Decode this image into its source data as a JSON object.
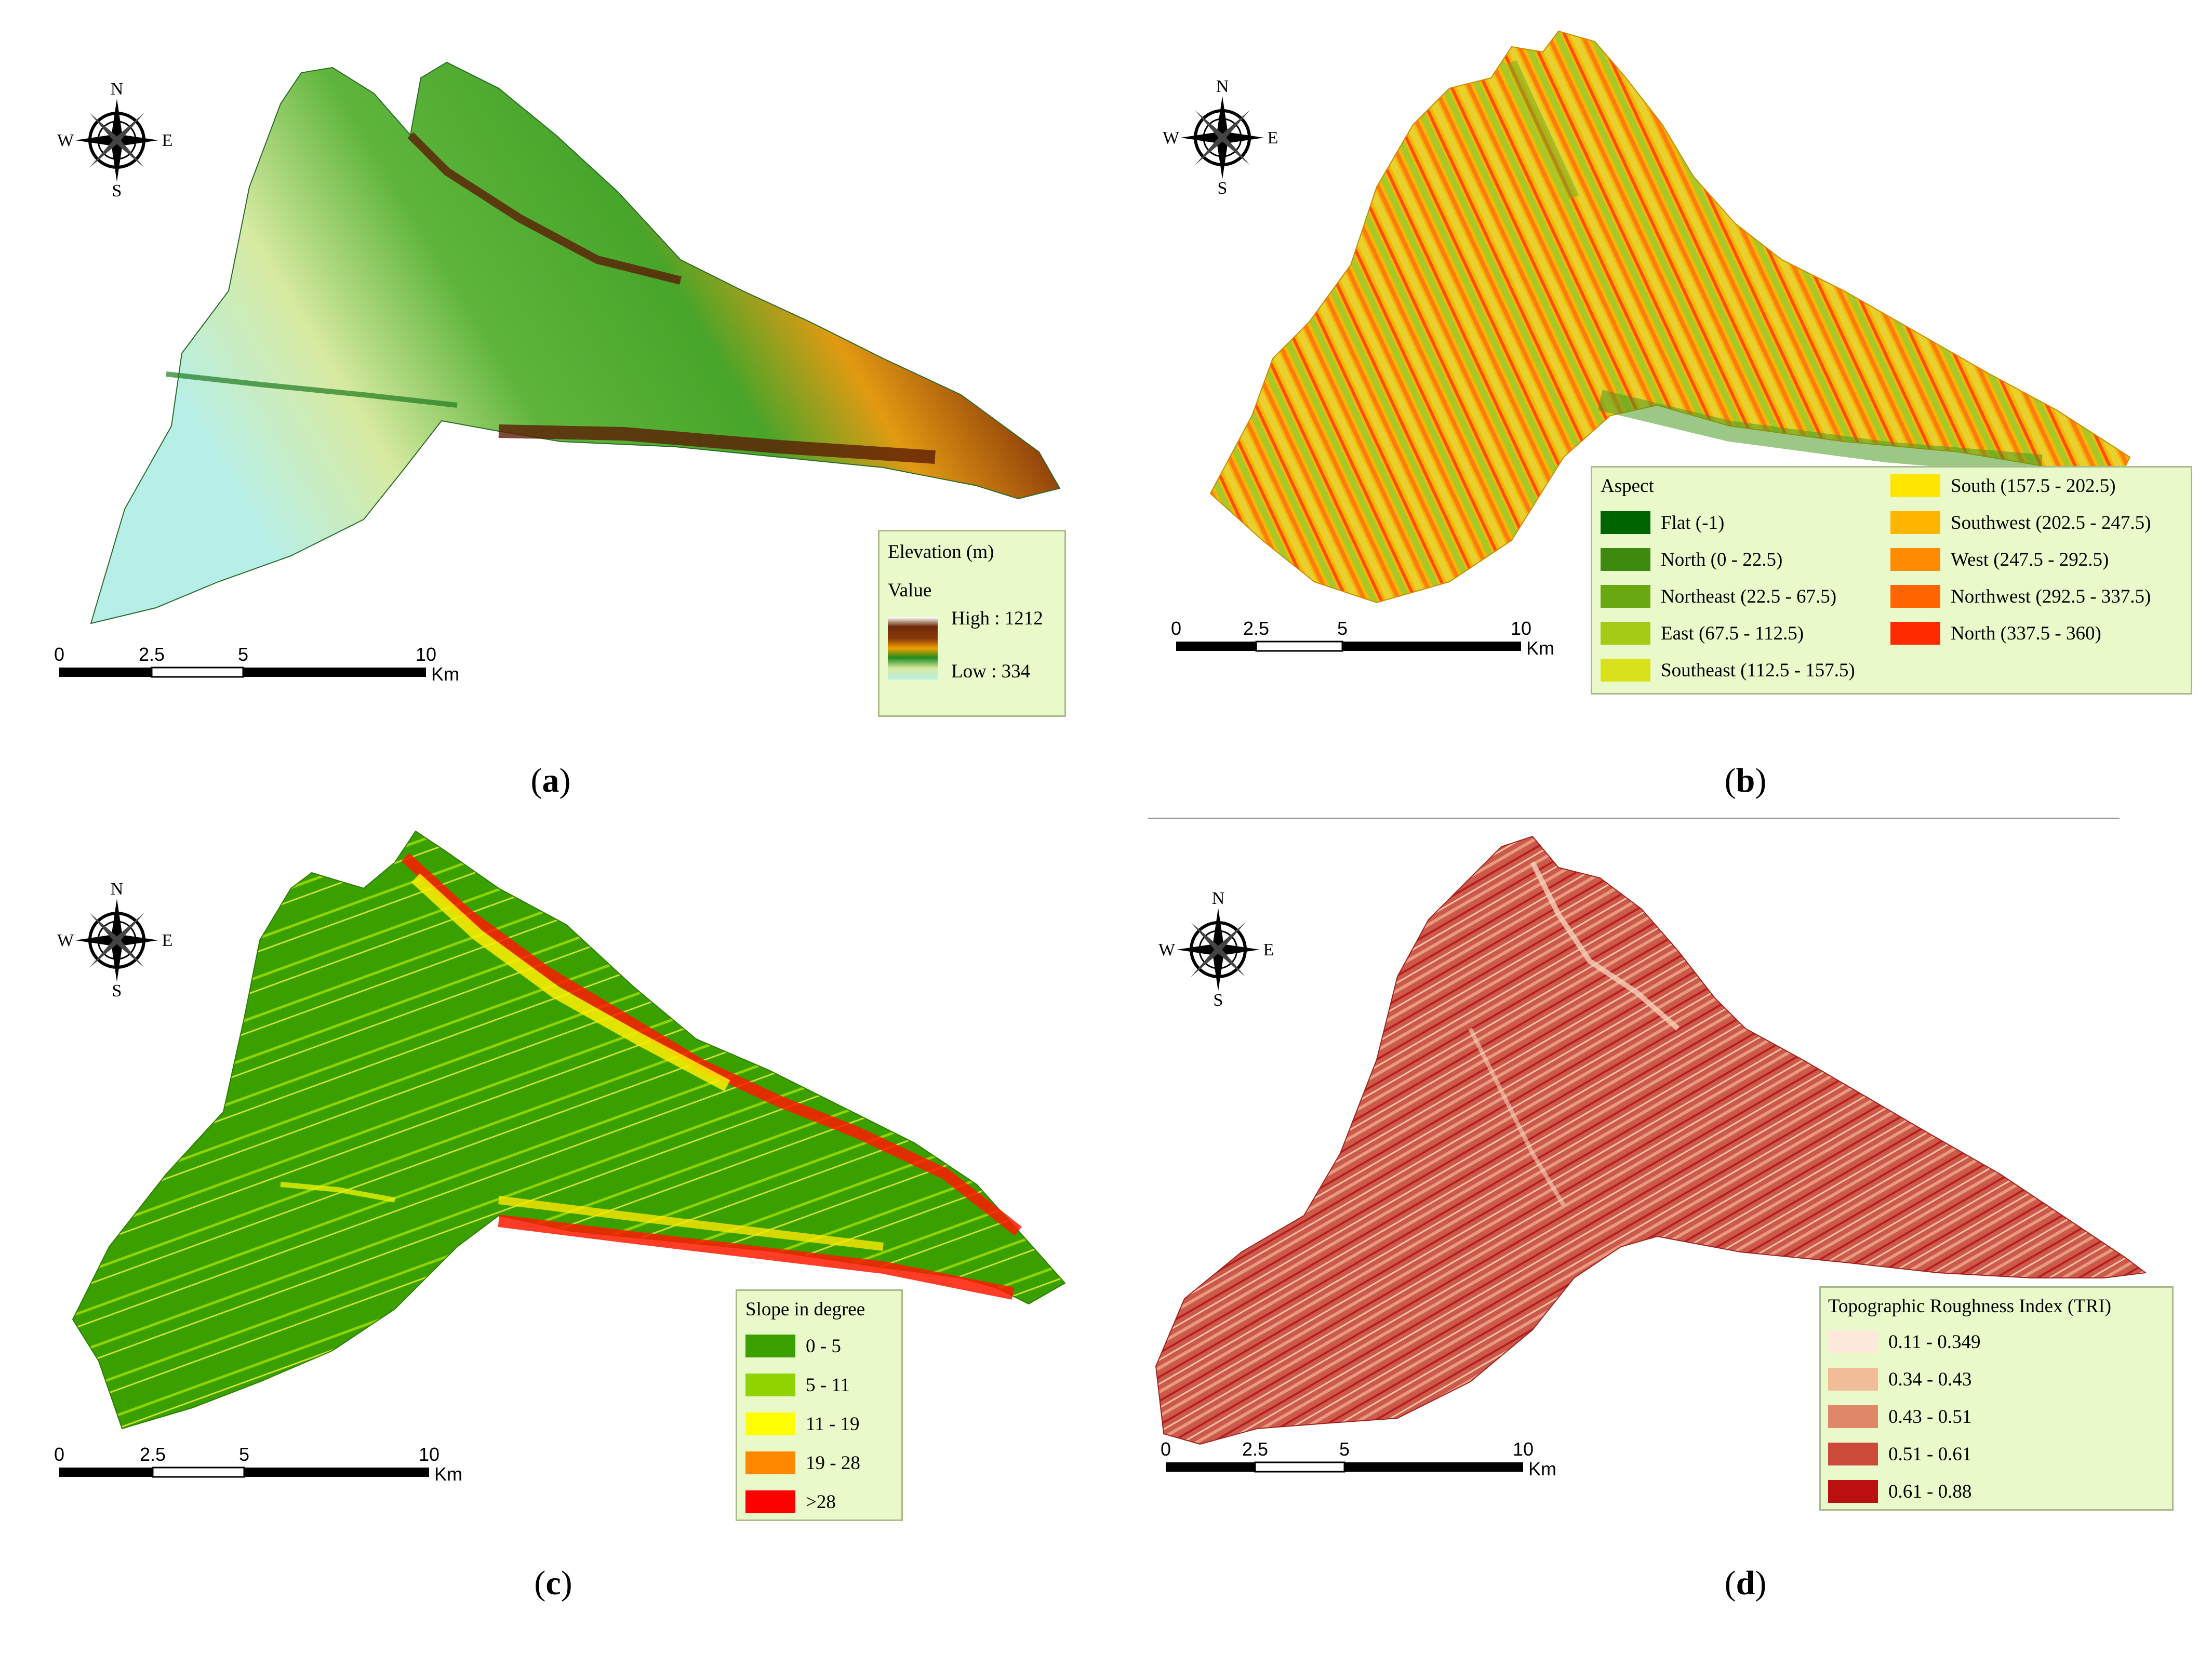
{
  "compass": {
    "n": "N",
    "s": "S",
    "e": "E",
    "w": "W"
  },
  "scalebar": {
    "ticks": [
      "0",
      "2.5",
      "5",
      "10"
    ],
    "unit": "Km"
  },
  "panels": {
    "a": {
      "caption": "a",
      "legend": {
        "title": "Elevation (m)",
        "subtitle": "Value",
        "high_label": "High : 1212",
        "low_label": "Low : 334"
      }
    },
    "b": {
      "caption": "b",
      "legend": {
        "title": "Aspect",
        "items": [
          {
            "label": "Flat (-1)",
            "color": "#006400"
          },
          {
            "label": "North (0 - 22.5)",
            "color": "#3d8a0f"
          },
          {
            "label": "Northeast (22.5 - 67.5)",
            "color": "#6aa812"
          },
          {
            "label": "East (67.5 - 112.5)",
            "color": "#a4cc16"
          },
          {
            "label": "Southeast (112.5 - 157.5)",
            "color": "#d8e11a"
          },
          {
            "label": "South (157.5 - 202.5)",
            "color": "#ffe500"
          },
          {
            "label": "Southwest (202.5 - 247.5)",
            "color": "#ffb400"
          },
          {
            "label": "West (247.5 - 292.5)",
            "color": "#ff8c00"
          },
          {
            "label": "Northwest (292.5 - 337.5)",
            "color": "#ff6400"
          },
          {
            "label": "North (337.5 - 360)",
            "color": "#ff2a00"
          }
        ]
      }
    },
    "c": {
      "caption": "c",
      "legend": {
        "title": "Slope in degree",
        "items": [
          {
            "label": "0 - 5",
            "color": "#3aa000"
          },
          {
            "label": "5 - 11",
            "color": "#8fd400"
          },
          {
            "label": "11 - 19",
            "color": "#ffff00"
          },
          {
            "label": "19 - 28",
            "color": "#ff8800"
          },
          {
            "label": ">28",
            "color": "#ff0000"
          }
        ]
      }
    },
    "d": {
      "caption": "d",
      "legend": {
        "title": "Topographic Roughness Index (TRI)",
        "items": [
          {
            "label": "0.11 - 0.349",
            "color": "#fde9d9"
          },
          {
            "label": "0.34 - 0.43",
            "color": "#f0bd98"
          },
          {
            "label": "0.43 - 0.51",
            "color": "#e0876a"
          },
          {
            "label": "0.51 - 0.61",
            "color": "#cc4a3a"
          },
          {
            "label": "0.61 - 0.88",
            "color": "#bb1010"
          }
        ]
      }
    }
  }
}
